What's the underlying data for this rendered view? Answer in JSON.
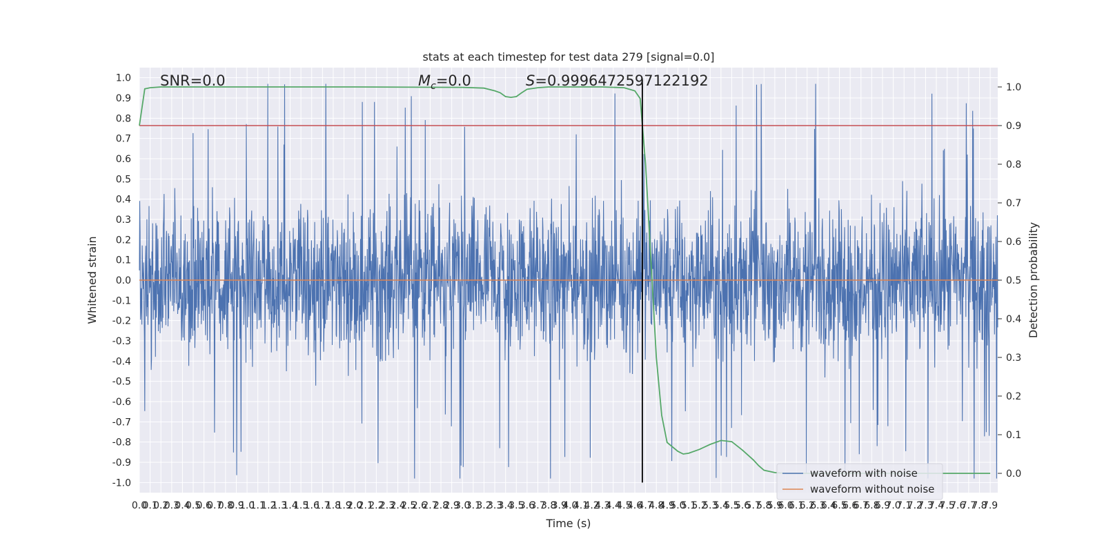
{
  "chart_data": {
    "type": "line",
    "title": "stats at each timestep for test data 279 [signal=0.0]",
    "xlabel": "Time (s)",
    "ylabel": "Whitened strain",
    "ylabel_right": "Detection probability",
    "xlim": [
      0.0,
      7.97
    ],
    "ylim": [
      -1.05,
      1.05
    ],
    "ylim_right": [
      -0.05,
      1.05
    ],
    "x_tick_step": 0.1,
    "x_tick_labels": [
      "0.0",
      "0.1",
      "0.2",
      "0.3",
      "0.4",
      "0.5",
      "0.6",
      "0.7",
      "0.8",
      "0.9",
      "1.0",
      "1.1",
      "1.2",
      "1.3",
      "1.4",
      "1.5",
      "1.6",
      "1.7",
      "1.8",
      "1.9",
      "2.0",
      "2.1",
      "2.2",
      "2.3",
      "2.4",
      "2.5",
      "2.6",
      "2.7",
      "2.8",
      "2.9",
      "3.0",
      "3.1",
      "3.2",
      "3.3",
      "3.4",
      "3.5",
      "3.6",
      "3.7",
      "3.8",
      "3.9",
      "4.0",
      "4.1",
      "4.2",
      "4.3",
      "4.4",
      "4.5",
      "4.6",
      "4.7",
      "4.8",
      "4.9",
      "5.0",
      "5.1",
      "5.2",
      "5.3",
      "5.4",
      "5.5",
      "5.6",
      "5.7",
      "5.8",
      "5.9",
      "6.0",
      "6.1",
      "6.2",
      "6.3",
      "6.4",
      "6.5",
      "6.6",
      "6.7",
      "6.8",
      "6.9",
      "7.0",
      "7.1",
      "7.2",
      "7.3",
      "7.4",
      "7.5",
      "7.6",
      "7.7",
      "7.8",
      "7.9"
    ],
    "y_tick_labels": [
      "1.0",
      "0.9",
      "0.8",
      "0.7",
      "0.6",
      "0.5",
      "0.4",
      "0.3",
      "0.2",
      "0.1",
      "0.0",
      "-0.1",
      "-0.2",
      "-0.3",
      "-0.4",
      "-0.5",
      "-0.6",
      "-0.7",
      "-0.8",
      "-0.9",
      "-1.0"
    ],
    "y_tick_values": [
      1.0,
      0.9,
      0.8,
      0.7,
      0.6,
      0.5,
      0.4,
      0.3,
      0.2,
      0.1,
      0.0,
      -0.1,
      -0.2,
      -0.3,
      -0.4,
      -0.5,
      -0.6,
      -0.7,
      -0.8,
      -0.9,
      -1.0
    ],
    "y2_tick_labels": [
      "1.0",
      "0.9",
      "0.8",
      "0.7",
      "0.6",
      "0.5",
      "0.4",
      "0.3",
      "0.2",
      "0.1",
      "0.0"
    ],
    "y2_tick_values": [
      1.0,
      0.9,
      0.8,
      0.7,
      0.6,
      0.5,
      0.4,
      0.3,
      0.2,
      0.1,
      0.0
    ],
    "annotations": {
      "snr": "SNR=0.0",
      "mc_symbol": "M",
      "mc_subscript": "c",
      "mc_value": "=0.0",
      "s_symbol": "S",
      "s_value": "=0.9996472597122192"
    },
    "series": [
      {
        "name": "waveform with noise",
        "color": "#4c72b0",
        "description": "dense whitened noise, amplitude roughly within -1.0 to 0.97",
        "amplitude_envelope": [
          -0.98,
          0.97
        ]
      },
      {
        "name": "waveform without noise",
        "color": "#dd8452",
        "values_constant": 0.0
      },
      {
        "name": "detection probability",
        "color": "#55a868",
        "axis": "right",
        "x": [
          0.0,
          0.05,
          0.1,
          0.2,
          0.5,
          1.0,
          2.0,
          3.0,
          3.2,
          3.3,
          3.35,
          3.4,
          3.45,
          3.5,
          3.55,
          3.6,
          3.7,
          3.8,
          4.0,
          4.3,
          4.5,
          4.6,
          4.65,
          4.7,
          4.75,
          4.8,
          4.85,
          4.9,
          5.0,
          5.05,
          5.1,
          5.2,
          5.3,
          5.4,
          5.5,
          5.6,
          5.7,
          5.75,
          5.8,
          5.9,
          6.0,
          6.5,
          7.0,
          7.5,
          7.9
        ],
        "values": [
          0.9,
          0.995,
          0.998,
          1.0,
          1.0,
          1.0,
          1.0,
          0.999,
          0.997,
          0.99,
          0.985,
          0.975,
          0.973,
          0.975,
          0.985,
          0.994,
          0.998,
          1.0,
          1.0,
          1.0,
          0.998,
          0.99,
          0.97,
          0.8,
          0.55,
          0.3,
          0.15,
          0.08,
          0.057,
          0.05,
          0.052,
          0.062,
          0.075,
          0.085,
          0.082,
          0.06,
          0.035,
          0.02,
          0.008,
          0.002,
          0.0,
          0.0,
          0.0,
          0.0,
          0.0
        ]
      }
    ],
    "threshold": {
      "value": 0.9,
      "axis": "right",
      "color": "#c44e52"
    },
    "marker_time": 4.67,
    "marker_color": "#000000",
    "grid": true,
    "legend_position": "bottom-right",
    "legend_entries": [
      "waveform with noise",
      "waveform without noise"
    ]
  }
}
